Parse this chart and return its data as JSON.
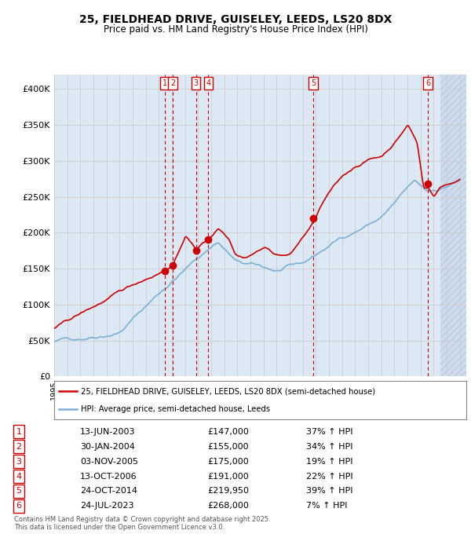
{
  "title_line1": "25, FIELDHEAD DRIVE, GUISELEY, LEEDS, LS20 8DX",
  "title_line2": "Price paid vs. HM Land Registry's House Price Index (HPI)",
  "ylim": [
    0,
    420000
  ],
  "yticks": [
    0,
    50000,
    100000,
    150000,
    200000,
    250000,
    300000,
    350000,
    400000
  ],
  "ytick_labels": [
    "£0",
    "£50K",
    "£100K",
    "£150K",
    "£200K",
    "£250K",
    "£300K",
    "£350K",
    "£400K"
  ],
  "hpi_color": "#7bafd4",
  "price_color": "#cc0000",
  "grid_color": "#cccccc",
  "bg_color": "#dde8f5",
  "hatch_color": "#c8d8ec",
  "legend_price_label": "25, FIELDHEAD DRIVE, GUISELEY, LEEDS, LS20 8DX (semi-detached house)",
  "legend_hpi_label": "HPI: Average price, semi-detached house, Leeds",
  "sale_years": [
    2003.45,
    2004.08,
    2005.84,
    2006.79,
    2014.81,
    2023.56
  ],
  "sale_prices": [
    147000,
    155000,
    175000,
    191000,
    219950,
    268000
  ],
  "sale_labels": [
    "1",
    "2",
    "3",
    "4",
    "5",
    "6"
  ],
  "xlim_start": 1995.0,
  "xlim_end": 2026.5,
  "hatch_start": 2024.5,
  "footer_text": "Contains HM Land Registry data © Crown copyright and database right 2025.\nThis data is licensed under the Open Government Licence v3.0.",
  "table_rows": [
    {
      "num": 1,
      "date": "13-JUN-2003",
      "price": "£147,000",
      "pct": "37% ↑ HPI"
    },
    {
      "num": 2,
      "date": "30-JAN-2004",
      "price": "£155,000",
      "pct": "34% ↑ HPI"
    },
    {
      "num": 3,
      "date": "03-NOV-2005",
      "price": "£175,000",
      "pct": "19% ↑ HPI"
    },
    {
      "num": 4,
      "date": "13-OCT-2006",
      "price": "£191,000",
      "pct": "22% ↑ HPI"
    },
    {
      "num": 5,
      "date": "24-OCT-2014",
      "price": "£219,950",
      "pct": "39% ↑ HPI"
    },
    {
      "num": 6,
      "date": "24-JUL-2023",
      "price": "£268,000",
      "pct": "7% ↑ HPI"
    }
  ]
}
